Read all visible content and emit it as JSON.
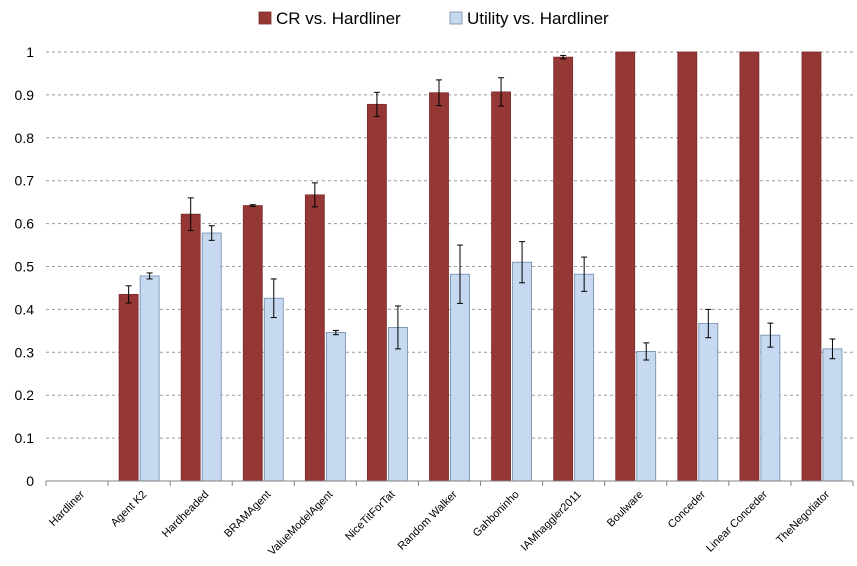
{
  "chart_data": {
    "type": "bar",
    "categories": [
      "Hardliner",
      "Agent K2",
      "Hardheaded",
      "BRAMAgent",
      "ValueModelAgent",
      "NiceTitForTat",
      "Random Walker",
      "Gahboninho",
      "IAMhaggler2011",
      "Boulware",
      "Conceder",
      "Linear Conceder",
      "TheNegotiator"
    ],
    "series": [
      {
        "name": "CR vs. Hardliner",
        "color": "#953735",
        "values": [
          0,
          0.435,
          0.622,
          0.642,
          0.667,
          0.878,
          0.905,
          0.907,
          0.988,
          1.0,
          1.0,
          1.0,
          1.0
        ],
        "errors": [
          0,
          0.02,
          0.038,
          0.002,
          0.028,
          0.028,
          0.03,
          0.033,
          0.004,
          0,
          0,
          0,
          0
        ]
      },
      {
        "name": "Utility vs. Hardliner",
        "color": "#c6d9f1",
        "values": [
          0,
          0.478,
          0.578,
          0.426,
          0.346,
          0.358,
          0.482,
          0.51,
          0.482,
          0.302,
          0.367,
          0.34,
          0.308
        ],
        "errors": [
          0,
          0.007,
          0.017,
          0.045,
          0.005,
          0.05,
          0.068,
          0.048,
          0.04,
          0.02,
          0.033,
          0.028,
          0.023
        ]
      }
    ],
    "ylim": [
      0,
      1
    ],
    "yticks": [
      "0",
      "0.1",
      "0.2",
      "0.3",
      "0.4",
      "0.5",
      "0.6",
      "0.7",
      "0.8",
      "0.9",
      "1"
    ],
    "grid": "horizontal dashed",
    "legend_position": "top-center"
  }
}
